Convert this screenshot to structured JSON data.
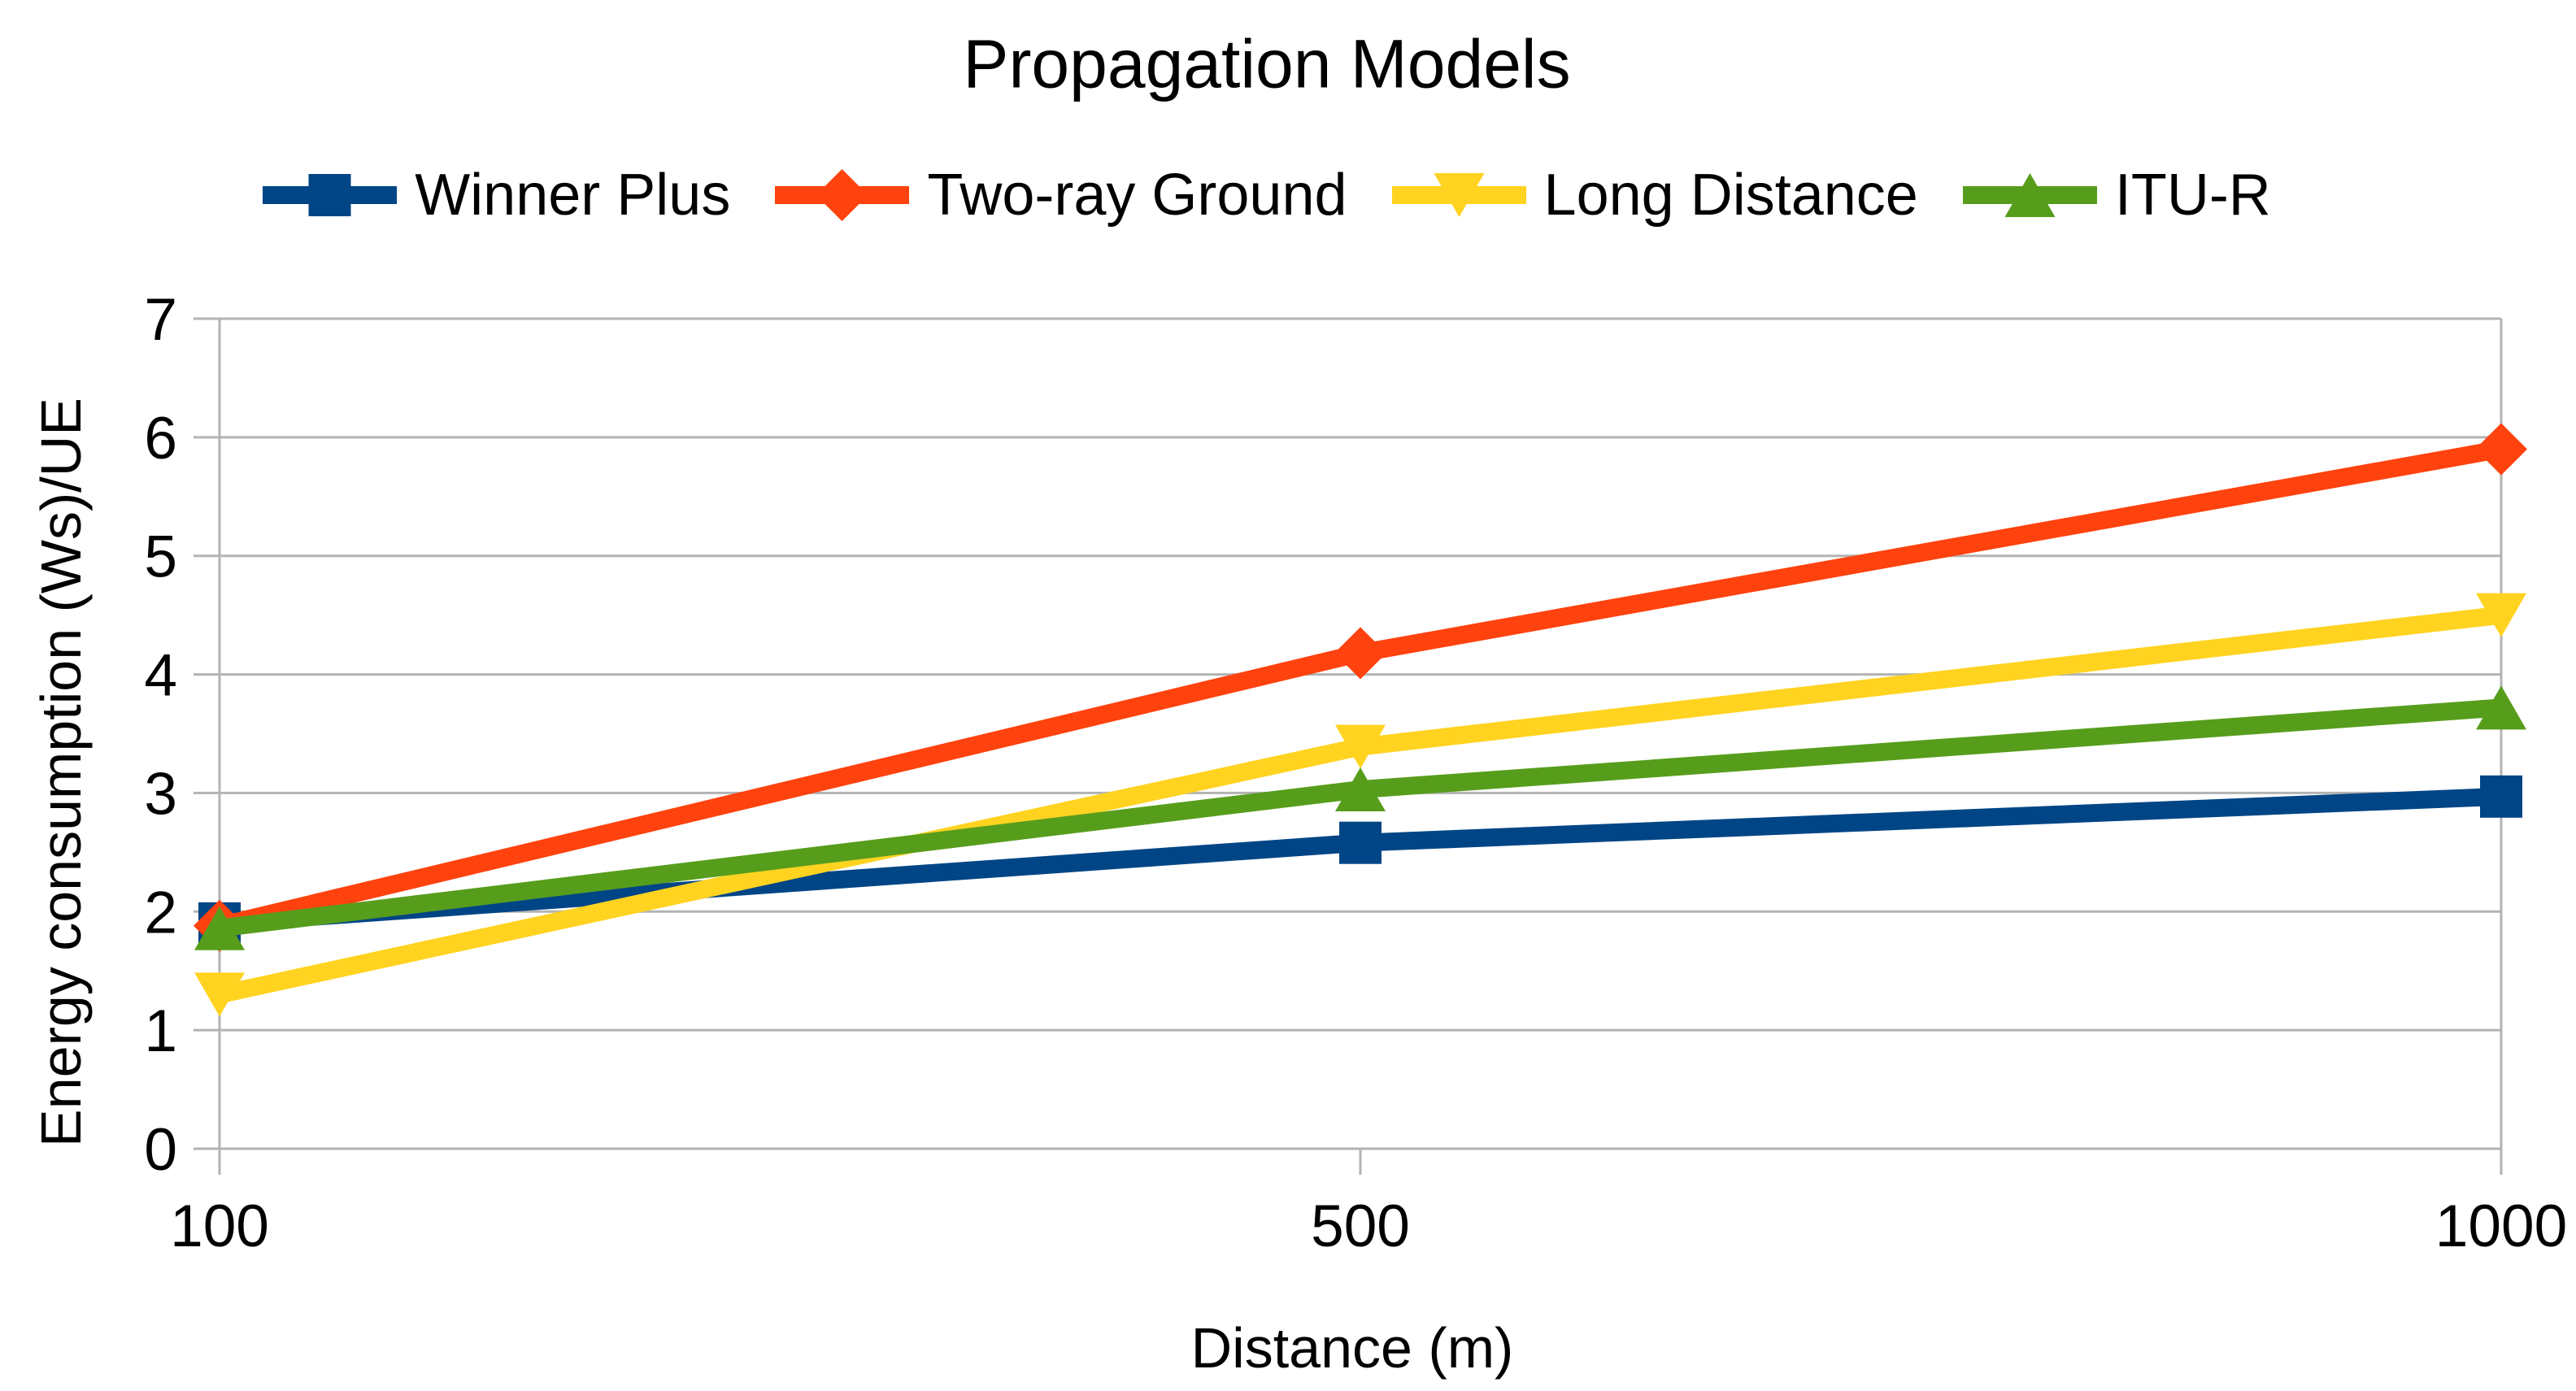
{
  "chart_data": {
    "type": "line",
    "title": "Propagation Models",
    "xlabel": "Distance (m)",
    "ylabel": "Energy consumption (Ws)/UE",
    "categories": [
      "100",
      "500",
      "1000"
    ],
    "x_values": [
      100,
      500,
      1000
    ],
    "ylim": [
      0,
      7
    ],
    "y_ticks": [
      0,
      1,
      2,
      3,
      4,
      5,
      6,
      7
    ],
    "grid": "horizontal",
    "legend_position": "top",
    "series": [
      {
        "name": "Winner Plus",
        "marker": "square",
        "color": "#004586",
        "values": [
          1.9,
          2.58,
          2.97
        ]
      },
      {
        "name": "Two-ray Ground",
        "marker": "diamond",
        "color": "#FF420E",
        "values": [
          1.88,
          4.18,
          5.9
        ]
      },
      {
        "name": "Long Distance",
        "marker": "triangle-down",
        "color": "#FFD320",
        "values": [
          1.3,
          3.39,
          4.5
        ]
      },
      {
        "name": "ITU-R",
        "marker": "triangle-up",
        "color": "#579D1C",
        "values": [
          1.86,
          3.03,
          3.72
        ]
      }
    ],
    "grid_color": "#b3b3b3",
    "text_color": "#000000",
    "background_color": "#ffffff"
  }
}
